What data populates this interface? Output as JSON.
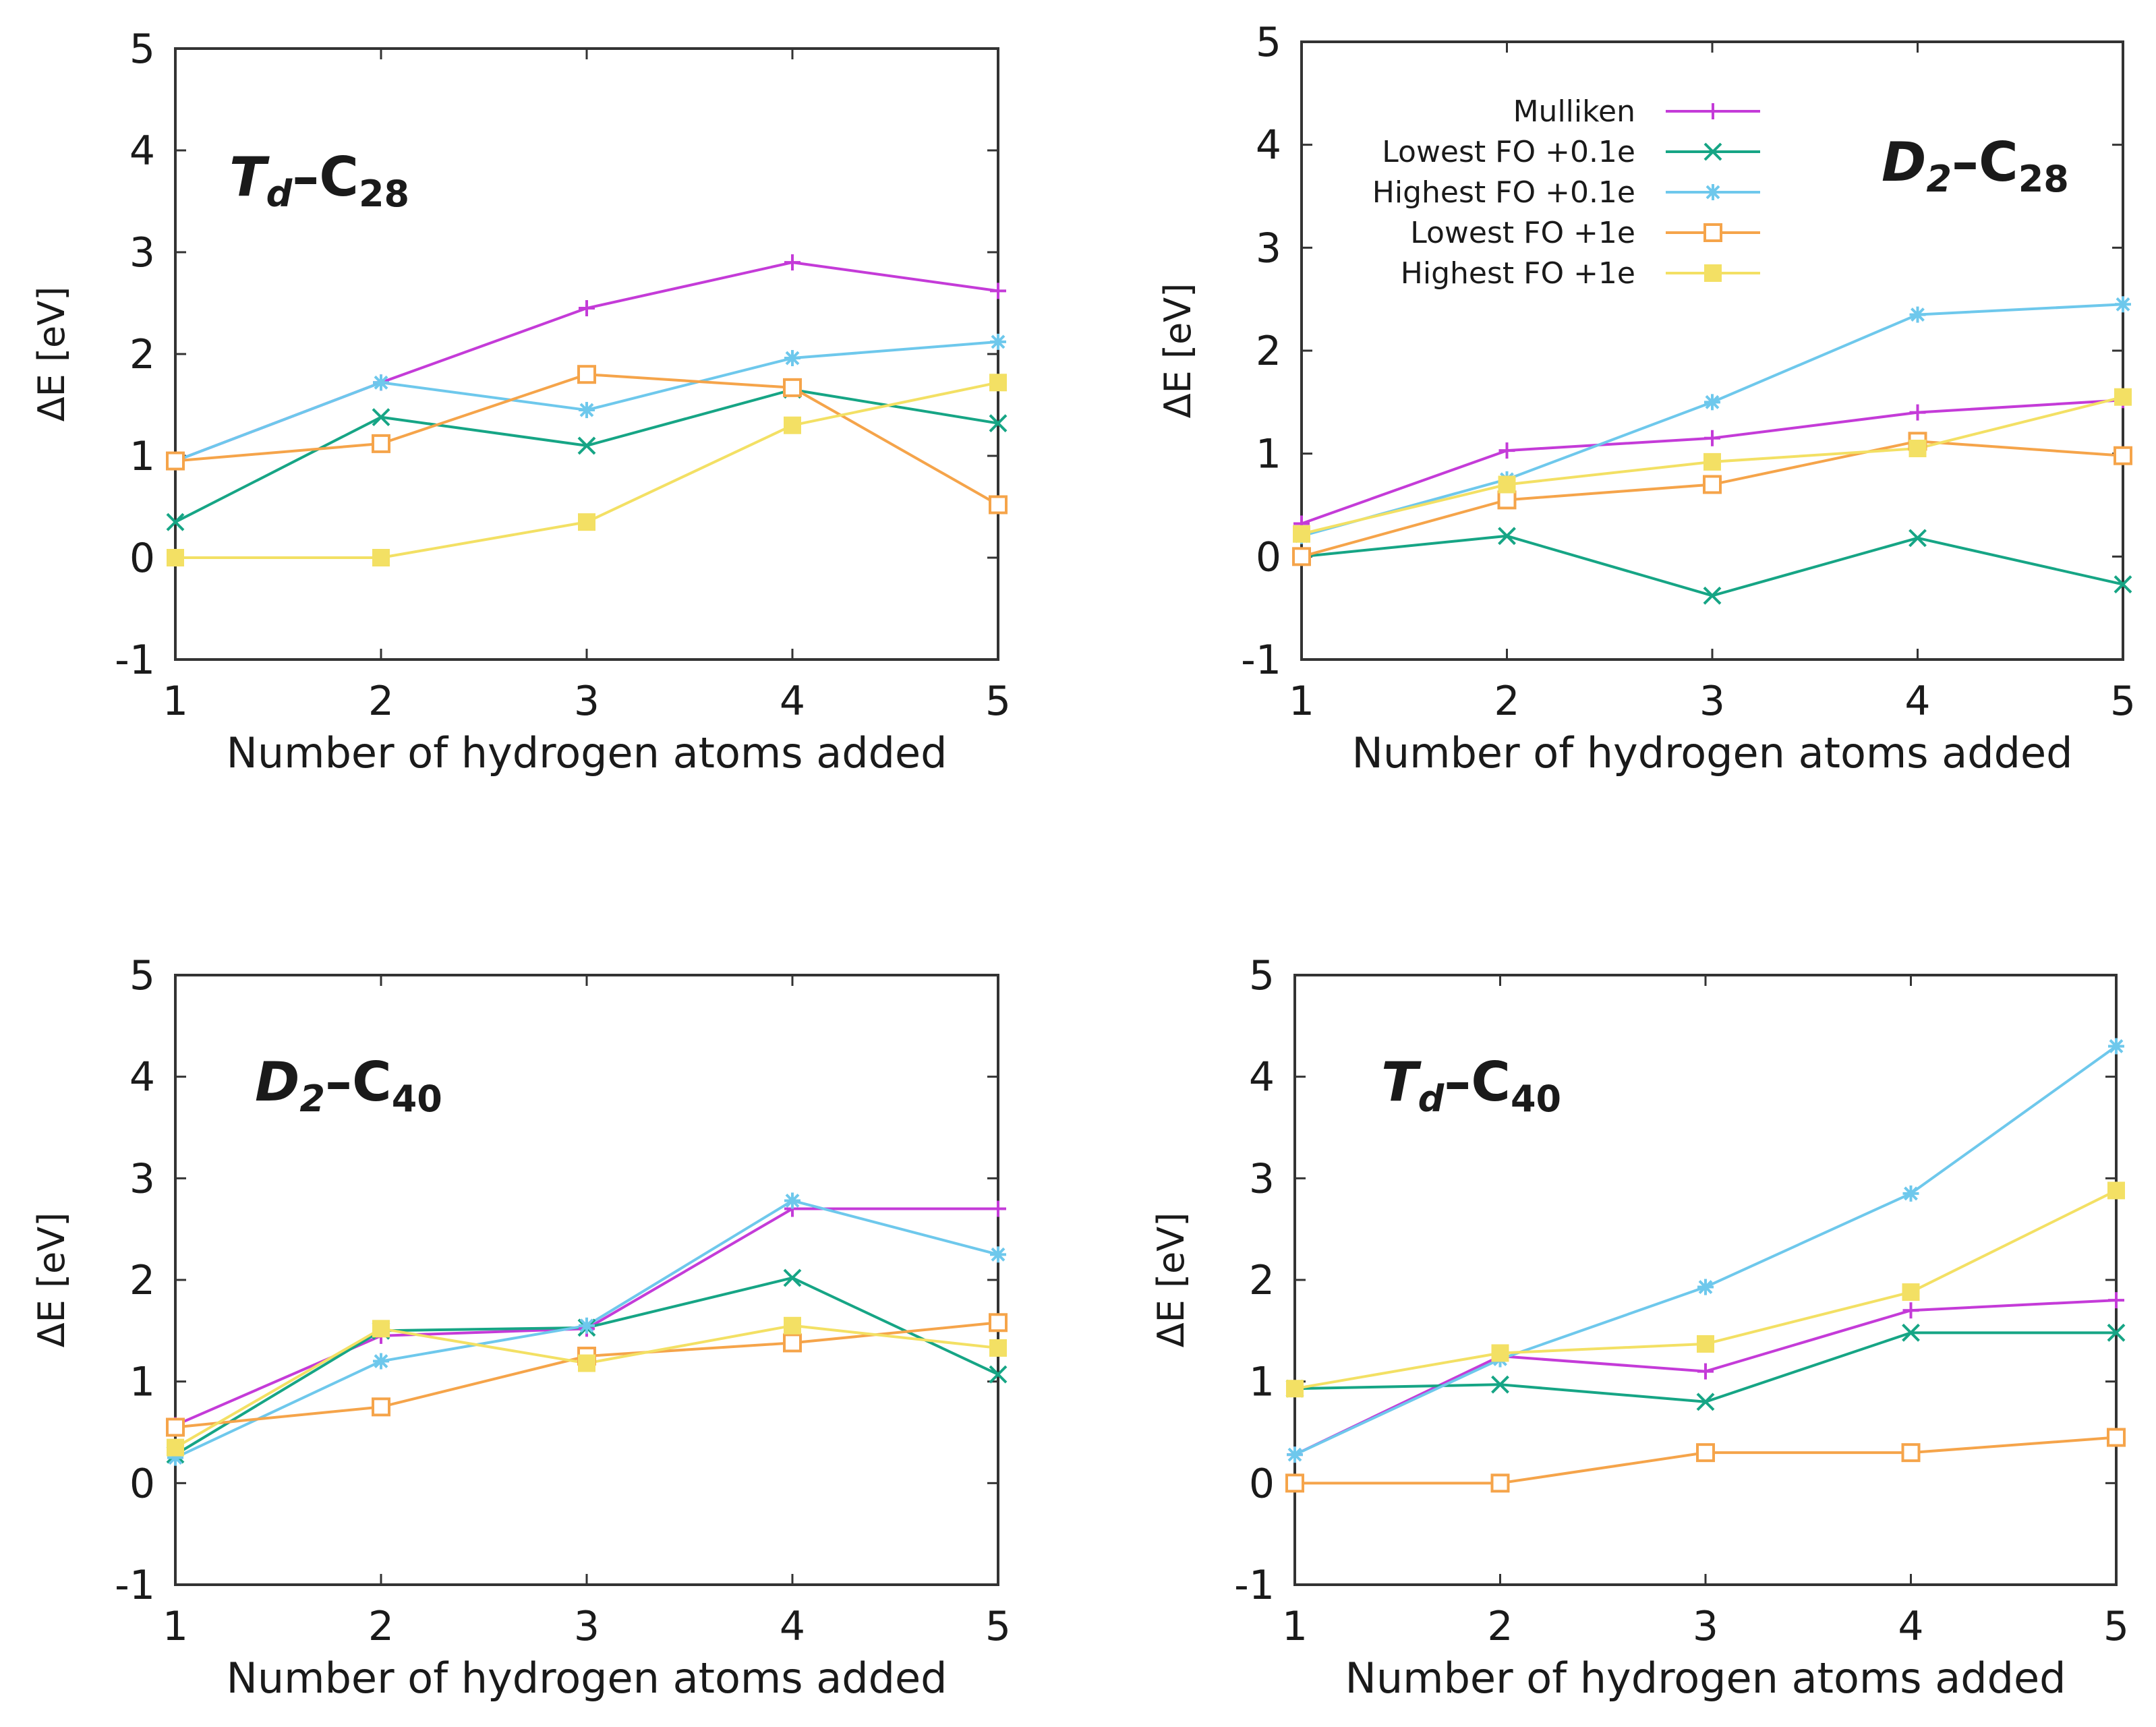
{
  "figure": {
    "colors": {
      "mulliken": "#c43bd8",
      "lowest_fo_01": "#16a585",
      "highest_fo_01": "#6ec8ec",
      "lowest_fo_1": "#f5a44a",
      "highest_fo_1": "#f3e064"
    },
    "legend": {
      "entries": [
        "Mulliken",
        "Lowest FO +0.1e",
        "Highest FO +0.1e",
        "Lowest FO +1e",
        "Highest FO +1e"
      ]
    }
  },
  "chart_data": [
    {
      "type": "line",
      "title_parts": {
        "sym": "T",
        "symsub": "d",
        "dash": "–C",
        "num": "28"
      },
      "xlabel": "Number of hydrogen atoms added",
      "ylabel": "ΔE [eV]",
      "x": [
        1,
        2,
        3,
        4,
        5
      ],
      "xlim": [
        1,
        5
      ],
      "ylim": [
        -1,
        5
      ],
      "x_ticks": [
        "1",
        "2",
        "3",
        "4",
        "5"
      ],
      "y_ticks": [
        "-1",
        "0",
        "1",
        "2",
        "3",
        "4",
        "5"
      ],
      "legend_shown": false,
      "series": [
        {
          "name": "Mulliken",
          "values": [
            0.95,
            1.72,
            2.45,
            2.9,
            2.62
          ]
        },
        {
          "name": "Lowest FO +0.1e",
          "values": [
            0.35,
            1.38,
            1.1,
            1.65,
            1.32
          ]
        },
        {
          "name": "Highest FO +0.1e",
          "values": [
            0.95,
            1.72,
            1.45,
            1.96,
            2.12
          ]
        },
        {
          "name": "Lowest FO +1e",
          "values": [
            0.95,
            1.12,
            1.8,
            1.67,
            0.52
          ]
        },
        {
          "name": "Highest FO +1e",
          "values": [
            0.0,
            0.0,
            0.35,
            1.3,
            1.72
          ]
        }
      ]
    },
    {
      "type": "line",
      "title_parts": {
        "sym": "D",
        "symsub": "2",
        "dash": "–C",
        "num": "28"
      },
      "xlabel": "Number of hydrogen atoms added",
      "ylabel": "ΔE [eV]",
      "x": [
        1,
        2,
        3,
        4,
        5
      ],
      "xlim": [
        1,
        5
      ],
      "ylim": [
        -1,
        5
      ],
      "x_ticks": [
        "1",
        "2",
        "3",
        "4",
        "5"
      ],
      "y_ticks": [
        "-1",
        "0",
        "1",
        "2",
        "3",
        "4",
        "5"
      ],
      "legend_shown": true,
      "legend_position": "top-left",
      "series": [
        {
          "name": "Mulliken",
          "values": [
            0.32,
            1.03,
            1.15,
            1.4,
            1.52
          ]
        },
        {
          "name": "Lowest FO +0.1e",
          "values": [
            0.0,
            0.2,
            -0.38,
            0.18,
            -0.27
          ]
        },
        {
          "name": "Highest FO +0.1e",
          "values": [
            0.2,
            0.75,
            1.5,
            2.35,
            2.45
          ]
        },
        {
          "name": "Lowest FO +1e",
          "values": [
            0.0,
            0.55,
            0.7,
            1.12,
            0.98
          ]
        },
        {
          "name": "Highest FO +1e",
          "values": [
            0.22,
            0.7,
            0.92,
            1.05,
            1.55
          ]
        }
      ]
    },
    {
      "type": "line",
      "title_parts": {
        "sym": "D",
        "symsub": "2",
        "dash": "–C",
        "num": "40"
      },
      "xlabel": "Number of hydrogen atoms added",
      "ylabel": "ΔE [eV]",
      "x": [
        1,
        2,
        3,
        4,
        5
      ],
      "xlim": [
        1,
        5
      ],
      "ylim": [
        -1,
        5
      ],
      "x_ticks": [
        "1",
        "2",
        "3",
        "4",
        "5"
      ],
      "y_ticks": [
        "-1",
        "0",
        "1",
        "2",
        "3",
        "4",
        "5"
      ],
      "legend_shown": false,
      "series": [
        {
          "name": "Mulliken",
          "values": [
            0.57,
            1.45,
            1.52,
            2.7,
            2.7
          ]
        },
        {
          "name": "Lowest FO +0.1e",
          "values": [
            0.28,
            1.5,
            1.53,
            2.02,
            1.07
          ]
        },
        {
          "name": "Highest FO +0.1e",
          "values": [
            0.25,
            1.2,
            1.55,
            2.78,
            2.25
          ]
        },
        {
          "name": "Lowest FO +1e",
          "values": [
            0.55,
            0.75,
            1.25,
            1.38,
            1.58
          ]
        },
        {
          "name": "Highest FO +1e",
          "values": [
            0.35,
            1.52,
            1.18,
            1.55,
            1.33
          ]
        }
      ]
    },
    {
      "type": "line",
      "title_parts": {
        "sym": "T",
        "symsub": "d",
        "dash": "–C",
        "num": "40"
      },
      "xlabel": "Number of hydrogen atoms added",
      "ylabel": "ΔE [eV]",
      "x": [
        1,
        2,
        3,
        4,
        5
      ],
      "xlim": [
        1,
        5
      ],
      "ylim": [
        -1,
        5
      ],
      "x_ticks": [
        "1",
        "2",
        "3",
        "4",
        "5"
      ],
      "y_ticks": [
        "-1",
        "0",
        "1",
        "2",
        "3",
        "4",
        "5"
      ],
      "legend_shown": false,
      "series": [
        {
          "name": "Mulliken",
          "values": [
            0.28,
            1.25,
            1.1,
            1.7,
            1.8
          ]
        },
        {
          "name": "Lowest FO +0.1e",
          "values": [
            0.93,
            0.97,
            0.8,
            1.48,
            1.48
          ]
        },
        {
          "name": "Highest FO +0.1e",
          "values": [
            0.28,
            1.22,
            1.93,
            2.85,
            4.3
          ]
        },
        {
          "name": "Lowest FO +1e",
          "values": [
            0.0,
            0.0,
            0.3,
            0.3,
            0.45
          ]
        },
        {
          "name": "Highest FO +1e",
          "values": [
            0.93,
            1.28,
            1.37,
            1.88,
            2.88
          ]
        }
      ]
    }
  ]
}
